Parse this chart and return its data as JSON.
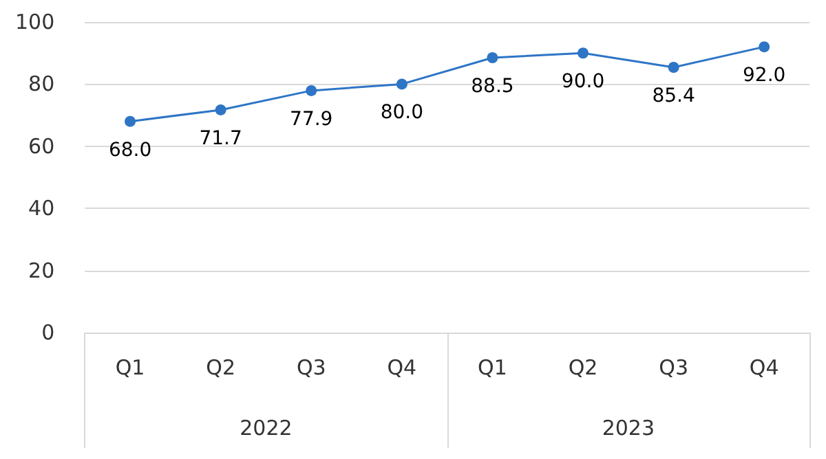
{
  "chart_data": {
    "type": "line",
    "categories": [
      "Q1",
      "Q2",
      "Q3",
      "Q4",
      "Q1",
      "Q2",
      "Q3",
      "Q4"
    ],
    "series": [
      {
        "color": "#2e75c6",
        "values": [
          68.0,
          71.7,
          77.9,
          80.0,
          88.5,
          90.0,
          85.4,
          92.0
        ],
        "value_labels": [
          "68.0",
          "71.7",
          "77.9",
          "80.0",
          "88.5",
          "90.0",
          "85.4",
          "92.0"
        ]
      }
    ],
    "annotations": [
      "2022",
      "2023"
    ],
    "marker": "circle",
    "line_style": "solid",
    "grid": "y",
    "ylim": [
      0,
      100
    ],
    "yticks": [
      0,
      20,
      40,
      60,
      80,
      100
    ]
  }
}
